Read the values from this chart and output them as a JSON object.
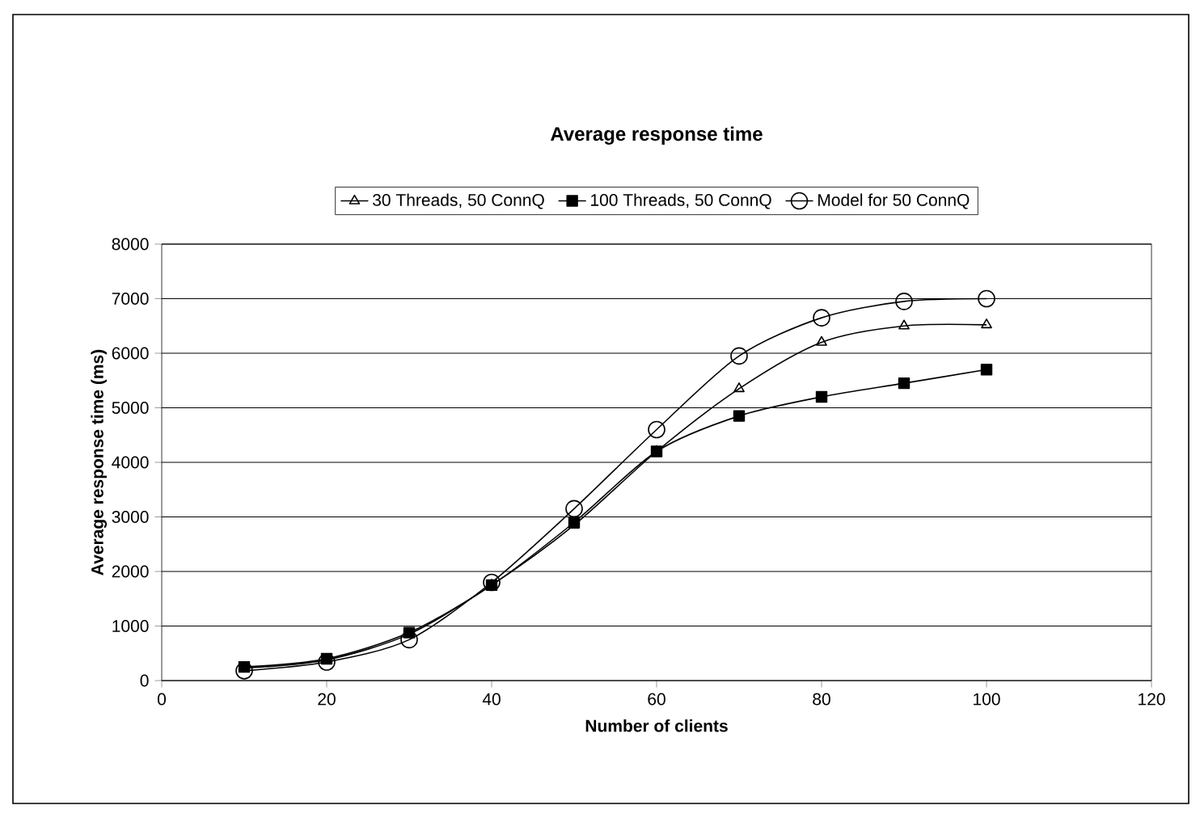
{
  "chart_data": {
    "type": "line",
    "title": "Average response time",
    "xlabel": "Number of clients",
    "ylabel": "Average response time (ms)",
    "x": [
      10,
      20,
      30,
      40,
      50,
      60,
      70,
      80,
      90,
      100
    ],
    "series": [
      {
        "name": "30 Threads, 50 ConnQ",
        "color": "#000000",
        "marker": "triangle",
        "values": [
          230,
          380,
          850,
          1750,
          2850,
          4200,
          5350,
          6200,
          6500,
          6520
        ]
      },
      {
        "name": "100 Threads, 50 ConnQ",
        "color": "#000000",
        "marker": "square",
        "values": [
          250,
          400,
          880,
          1750,
          2900,
          4200,
          4850,
          5200,
          5450,
          5700
        ]
      },
      {
        "name": "Model for 50 ConnQ",
        "color": "#000000",
        "marker": "circle",
        "values": [
          180,
          340,
          750,
          1800,
          3150,
          4600,
          5950,
          6650,
          6950,
          7000
        ]
      }
    ],
    "xlim": [
      0,
      120
    ],
    "ylim": [
      0,
      8000
    ],
    "xticks": [
      0,
      20,
      40,
      60,
      80,
      100,
      120
    ],
    "yticks": [
      0,
      1000,
      2000,
      3000,
      4000,
      5000,
      6000,
      7000,
      8000
    ],
    "grid": "y",
    "legend": "top",
    "line_style": "solid"
  }
}
